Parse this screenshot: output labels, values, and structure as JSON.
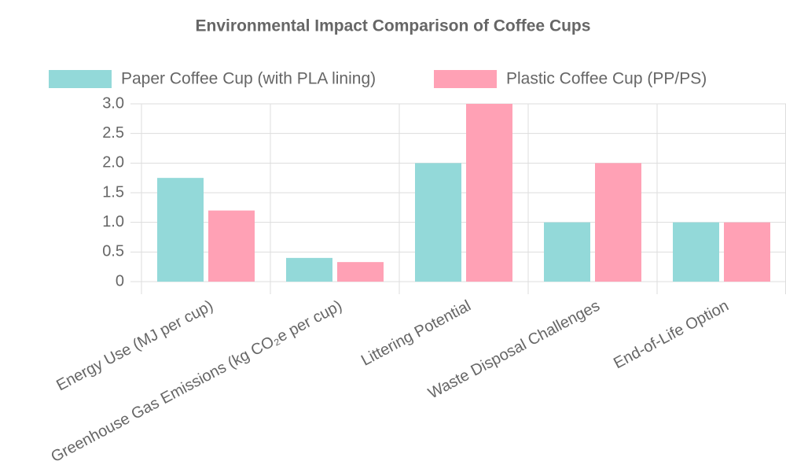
{
  "chart_data": {
    "type": "bar",
    "title": "Environmental Impact Comparison of Coffee Cups",
    "categories": [
      "Energy Use (MJ per cup)",
      "Greenhouse Gas Emissions (kg CO₂e per cup)",
      "Littering Potential",
      "Waste Disposal Challenges",
      "End-of-Life Option"
    ],
    "series": [
      {
        "name": "Paper Coffee Cup (with PLA lining)",
        "color": "#93d9d9",
        "values": [
          1.75,
          0.4,
          2,
          1,
          1
        ]
      },
      {
        "name": "Plastic Coffee Cup (PP/PS)",
        "color": "#ffa1b5",
        "values": [
          1.2,
          0.33,
          3,
          2,
          1
        ]
      }
    ],
    "ylim": [
      0,
      3
    ],
    "yticks": [
      0,
      0.5,
      {
        "value": 1,
        "label": "1.0"
      },
      1.5,
      {
        "value": 2,
        "label": "2.0"
      },
      2.5,
      {
        "value": 3,
        "label": "3.0"
      }
    ],
    "grid": true,
    "legend": "top"
  }
}
